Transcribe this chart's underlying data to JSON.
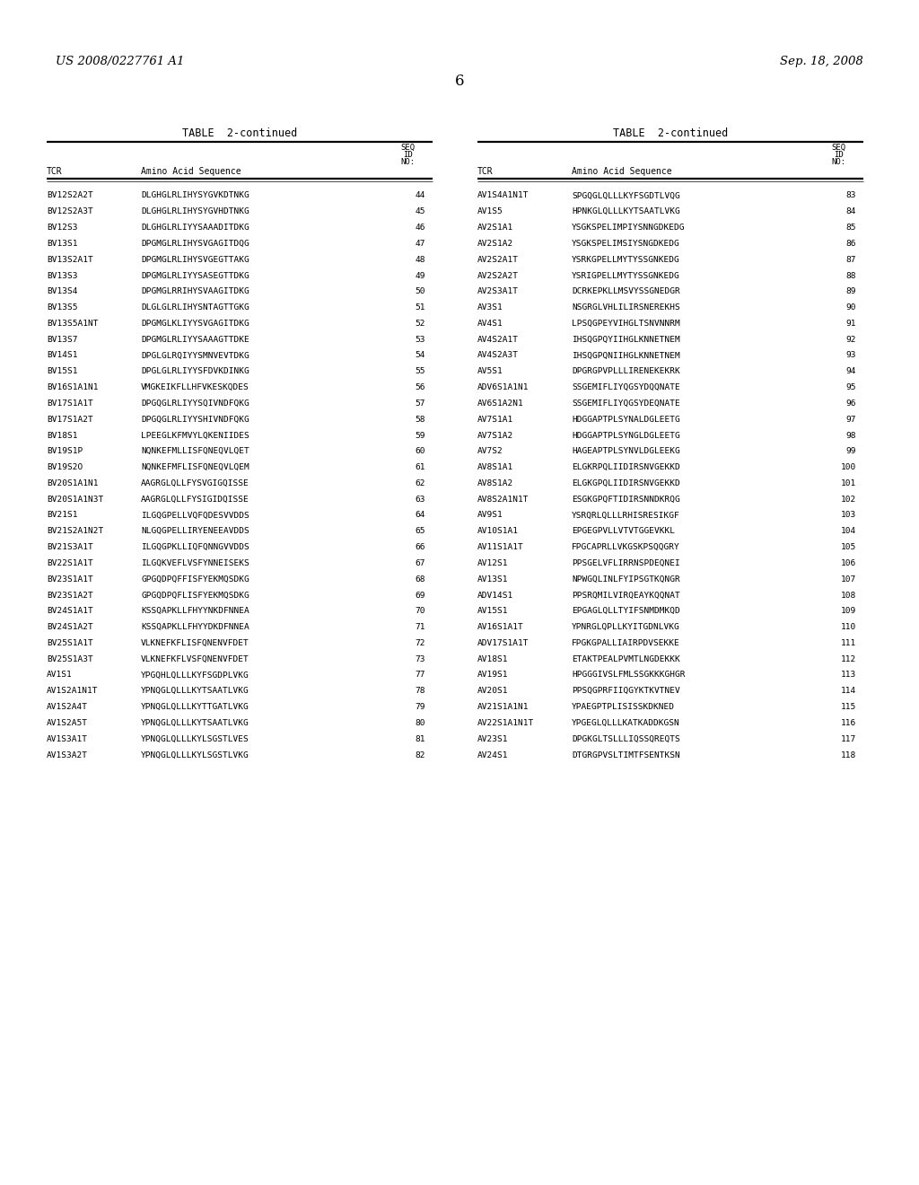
{
  "header_left": "US 2008/0227761 A1",
  "header_right": "Sep. 18, 2008",
  "page_number": "6",
  "left_table": [
    [
      "BV12S2A2T",
      "DLGHGLRLIHYSYGVKDTNKG",
      "44"
    ],
    [
      "BV12S2A3T",
      "DLGHGLRLIHYSYGVHDTNKG",
      "45"
    ],
    [
      "BV12S3",
      "DLGHGLRLIYYSAAADITDKG",
      "46"
    ],
    [
      "BV13S1",
      "DPGMGLRLIHYSVGAGITDQG",
      "47"
    ],
    [
      "BV13S2A1T",
      "DPGMGLRLIHYSVGEGTTAKG",
      "48"
    ],
    [
      "BV13S3",
      "DPGMGLRLIYYSASEGTTDKG",
      "49"
    ],
    [
      "BV13S4",
      "DPGMGLRRIHYSVAAGITDKG",
      "50"
    ],
    [
      "BV13S5",
      "DLGLGLRLIHYSNTAGTTGKG",
      "51"
    ],
    [
      "BV13S5A1NT",
      "DPGMGLKLIYYSVGAGITDKG",
      "52"
    ],
    [
      "BV13S7",
      "DPGMGLRLIYYSAAAGTTDKE",
      "53"
    ],
    [
      "BV14S1",
      "DPGLGLRQIYYSMNVEVTDKG",
      "54"
    ],
    [
      "BV15S1",
      "DPGLGLRLIYYSFDVKDINKG",
      "55"
    ],
    [
      "BV16S1A1N1",
      "VMGKEIKFLLHFVKESKQDES",
      "56"
    ],
    [
      "BV17S1A1T",
      "DPGQGLRLIYYSQIVNDFQKG",
      "57"
    ],
    [
      "BV17S1A2T",
      "DPGQGLRLIYYSHIVNDFQKG",
      "58"
    ],
    [
      "BV18S1",
      "LPEEGLKFMVYLQKENIIDES",
      "59"
    ],
    [
      "BV19S1P",
      "NQNKEFMLLISFQNEQVLQET",
      "60"
    ],
    [
      "BV19S2O",
      "NQNKEFMFLISFQNEQVLQEM",
      "61"
    ],
    [
      "BV20S1A1N1",
      "AAGRGLQLLFYSVGIGQISSE",
      "62"
    ],
    [
      "BV20S1A1N3T",
      "AAGRGLQLLFYSIGIDQISSE",
      "63"
    ],
    [
      "BV21S1",
      "ILGQGPELLVQFQDESVVDDS",
      "64"
    ],
    [
      "BV21S2A1N2T",
      "NLGQGPELLIRYENEEAVDDS",
      "65"
    ],
    [
      "BV21S3A1T",
      "ILGQGPKLLIQFQNNGVVDDS",
      "66"
    ],
    [
      "BV22S1A1T",
      "ILGQKVEFLVSFYNNEISEKS",
      "67"
    ],
    [
      "BV23S1A1T",
      "GPGQDPQFFISFYEKMQSDKG",
      "68"
    ],
    [
      "BV23S1A2T",
      "GPGQDPQFLISFYEKMQSDKG",
      "69"
    ],
    [
      "BV24S1A1T",
      "KSSQAPKLLFHYYNKDFNNEA",
      "70"
    ],
    [
      "BV24S1A2T",
      "KSSQAPKLLFHYYDKDFNNEA",
      "71"
    ],
    [
      "BV25S1A1T",
      "VLKNEFKFLISFQNENVFDET",
      "72"
    ],
    [
      "BV25S1A3T",
      "VLKNEFKFLVSFQNENVFDET",
      "73"
    ],
    [
      "AV1S1",
      "YPGQHLQLLLKYFSGDPLVKG",
      "77"
    ],
    [
      "AV1S2A1N1T",
      "YPNQGLQLLLKYTSAATLVKG",
      "78"
    ],
    [
      "AV1S2A4T",
      "YPNQGLQLLLKYTTGATLVKG",
      "79"
    ],
    [
      "AV1S2A5T",
      "YPNQGLQLLLKYTSAATLVKG",
      "80"
    ],
    [
      "AV1S3A1T",
      "YPNQGLQLLLKYLSGSTLVES",
      "81"
    ],
    [
      "AV1S3A2T",
      "YPNQGLQLLLKYLSGSTLVKG",
      "82"
    ]
  ],
  "right_table": [
    [
      "AV1S4A1N1T",
      "SPGQGLQLLLKYFSGDTLVQG",
      "83"
    ],
    [
      "AV1S5",
      "HPNKGLQLLLKYTSAATLVKG",
      "84"
    ],
    [
      "AV2S1A1",
      "YSGKSPELIMPIYSNNGDKEDG",
      "85"
    ],
    [
      "AV2S1A2",
      "YSGKSPELIMSIYSNGDKEDG",
      "86"
    ],
    [
      "AV2S2A1T",
      "YSRKGPELLMYTYSSGNKEDG",
      "87"
    ],
    [
      "AV2S2A2T",
      "YSRIGPELLMYTYSSGNKEDG",
      "88"
    ],
    [
      "AV2S3A1T",
      "DCRKEPKLLMSVYSSGNEDGR",
      "89"
    ],
    [
      "AV3S1",
      "NSGRGLVHLILIRSNEREКHS",
      "90"
    ],
    [
      "AV4S1",
      "LPSQGPEYVIHGLTSNVNNRM",
      "91"
    ],
    [
      "AV4S2A1T",
      "IHSQGPQYIIHGLKNNETNEM",
      "92"
    ],
    [
      "AV4S2A3T",
      "IHSQGPQNIIHGLKNNETNEM",
      "93"
    ],
    [
      "AV5S1",
      "DPGRGPVPLLLIRENEKEKRK",
      "94"
    ],
    [
      "ADV6S1A1N1",
      "SSGEMIFLIYQGSYDQQNATE",
      "95"
    ],
    [
      "AV6S1A2N1",
      "SSGEMIFLIYQGSYDEQNATE",
      "96"
    ],
    [
      "AV7S1A1",
      "HDGGAPTPLSYNALDGLEETG",
      "97"
    ],
    [
      "AV7S1A2",
      "HDGGAPTPLSYNGLDGLEETG",
      "98"
    ],
    [
      "AV7S2",
      "HAGEAPTPLSYNVLDGLEEKG",
      "99"
    ],
    [
      "AV8S1A1",
      "ELGKRPQLIIDIRSNVGEKKD",
      "100"
    ],
    [
      "AV8S1A2",
      "ELGKGPQLIIDIRSNVGEKKD",
      "101"
    ],
    [
      "AV8S2A1N1T",
      "ESGKGPQFTIDIRSNNDKRQG",
      "102"
    ],
    [
      "AV9S1",
      "YSRQRLQLLLRHISRESIKGF",
      "103"
    ],
    [
      "AV10S1A1",
      "EPGEGPVLLVTVTGGEVKKL",
      "104"
    ],
    [
      "AV11S1A1T",
      "FPGCAPRLLVKGSKPSQQGRY",
      "105"
    ],
    [
      "AV12S1",
      "PPSGELVFLIRRNSPDЕQNEI",
      "106"
    ],
    [
      "AV13S1",
      "NPWGQLINLFYIPSGTKQNGR",
      "107"
    ],
    [
      "ADV14S1",
      "PPSRQMILVIRQEAYKQQNAT",
      "108"
    ],
    [
      "AV15S1",
      "EPGAGLQLLTYIFSNMDMKQD",
      "109"
    ],
    [
      "AV16S1A1T",
      "YPNRGLQPLLKYITGDNLVKG",
      "110"
    ],
    [
      "ADV17S1A1T",
      "FPGKGPALLIAIRPDVSEKKE",
      "111"
    ],
    [
      "AV18S1",
      "ETAKTPEALPVMTLNGDEKKK",
      "112"
    ],
    [
      "AV19S1",
      "HPGGGIVSLFMLSSGKKKGHGR",
      "113"
    ],
    [
      "AV20S1",
      "PPSQGPRFIIQGYKTKVTNEV",
      "114"
    ],
    [
      "AV21S1A1N1",
      "YPAEGPTPLISISSKDKNED",
      "115"
    ],
    [
      "AV22S1A1N1T",
      "YPGEGLQLLLKATKADDKGSN",
      "116"
    ],
    [
      "AV23S1",
      "DPGKGLTSLLLIQSSQREQTS",
      "117"
    ],
    [
      "AV24S1",
      "DTGRGPVSLTIMTFSENTKSN",
      "118"
    ]
  ],
  "bg_color": "#ffffff",
  "text_color": "#000000",
  "fig_width": 10.24,
  "fig_height": 13.2,
  "dpi": 100
}
